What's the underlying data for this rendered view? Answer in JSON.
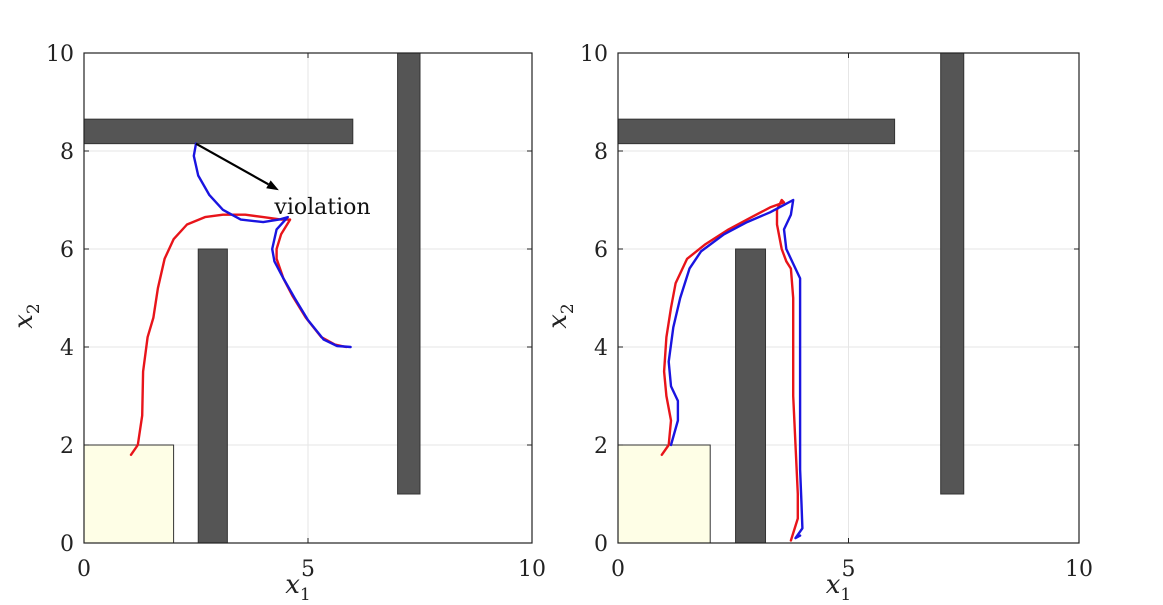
{
  "figure": {
    "panels": 2,
    "colors": {
      "obstacle": "#555555",
      "obstacle_edge": "#333333",
      "start_region": "#fefee6",
      "grid": "#e6e6e6",
      "axis": "#222222",
      "red_series": "#e8141a",
      "blue_series": "#1a14e0"
    }
  },
  "chart_data": [
    {
      "type": "line",
      "title": "",
      "xlabel": "x",
      "xlabel_sub": "1",
      "ylabel": "x",
      "ylabel_sub": "2",
      "xlim": [
        0,
        10
      ],
      "ylim": [
        0,
        10
      ],
      "xticks": [
        "0",
        "5",
        "10"
      ],
      "yticks": [
        "0",
        "2",
        "4",
        "6",
        "8",
        "10"
      ],
      "grid": true,
      "obstacles": [
        {
          "name": "horizontal-wall",
          "x0": 0,
          "x1": 6,
          "y0": 8.15,
          "y1": 8.65
        },
        {
          "name": "middle-pillar",
          "x0": 2.55,
          "x1": 3.2,
          "y0": 0,
          "y1": 6
        },
        {
          "name": "right-pillar",
          "x0": 7.0,
          "x1": 7.5,
          "y0": 1,
          "y1": 10
        }
      ],
      "start_region": {
        "x0": 0,
        "x1": 2,
        "y0": 0,
        "y1": 2
      },
      "annotation": {
        "text": "violation",
        "arrow_from": [
          2.5,
          8.15
        ],
        "arrow_to": [
          4.35,
          7.2
        ],
        "text_at": [
          4.25,
          6.65
        ]
      },
      "series": [
        {
          "name": "red",
          "color": "#e8141a",
          "points": [
            [
              1.05,
              1.8
            ],
            [
              1.2,
              2.0
            ],
            [
              1.3,
              2.6
            ],
            [
              1.32,
              3.5
            ],
            [
              1.42,
              4.2
            ],
            [
              1.55,
              4.6
            ],
            [
              1.65,
              5.2
            ],
            [
              1.8,
              5.8
            ],
            [
              2.0,
              6.2
            ],
            [
              2.3,
              6.5
            ],
            [
              2.7,
              6.65
            ],
            [
              3.1,
              6.7
            ],
            [
              3.6,
              6.7
            ],
            [
              4.0,
              6.65
            ],
            [
              4.4,
              6.6
            ],
            [
              4.6,
              6.6
            ],
            [
              4.4,
              6.3
            ],
            [
              4.3,
              6.0
            ],
            [
              4.3,
              5.8
            ],
            [
              4.45,
              5.4
            ],
            [
              4.65,
              5.05
            ],
            [
              4.95,
              4.6
            ],
            [
              5.3,
              4.2
            ],
            [
              5.6,
              4.05
            ],
            [
              5.85,
              4.0
            ]
          ]
        },
        {
          "name": "blue",
          "color": "#1a14e0",
          "points": [
            [
              2.5,
              8.15
            ],
            [
              2.45,
              7.9
            ],
            [
              2.55,
              7.5
            ],
            [
              2.8,
              7.1
            ],
            [
              3.1,
              6.8
            ],
            [
              3.5,
              6.6
            ],
            [
              4.0,
              6.55
            ],
            [
              4.35,
              6.6
            ],
            [
              4.55,
              6.65
            ],
            [
              4.3,
              6.4
            ],
            [
              4.2,
              6.0
            ],
            [
              4.25,
              5.75
            ],
            [
              4.45,
              5.4
            ],
            [
              4.7,
              5.0
            ],
            [
              5.0,
              4.55
            ],
            [
              5.35,
              4.15
            ],
            [
              5.65,
              4.02
            ],
            [
              5.95,
              4.0
            ]
          ]
        }
      ]
    },
    {
      "type": "line",
      "title": "",
      "xlabel": "x",
      "xlabel_sub": "1",
      "ylabel": "x",
      "ylabel_sub": "2",
      "xlim": [
        0,
        10
      ],
      "ylim": [
        0,
        10
      ],
      "xticks": [
        "0",
        "5",
        "10"
      ],
      "yticks": [
        "0",
        "2",
        "4",
        "6",
        "8",
        "10"
      ],
      "grid": true,
      "obstacles": [
        {
          "name": "horizontal-wall",
          "x0": 0,
          "x1": 6,
          "y0": 8.15,
          "y1": 8.65
        },
        {
          "name": "middle-pillar",
          "x0": 2.55,
          "x1": 3.2,
          "y0": 0,
          "y1": 6
        },
        {
          "name": "right-pillar",
          "x0": 7.0,
          "x1": 7.5,
          "y0": 1,
          "y1": 10
        }
      ],
      "start_region": {
        "x0": 0,
        "x1": 2,
        "y0": 0,
        "y1": 2
      },
      "series": [
        {
          "name": "red",
          "color": "#e8141a",
          "points": [
            [
              0.95,
              1.8
            ],
            [
              1.1,
              2.0
            ],
            [
              1.15,
              2.5
            ],
            [
              1.05,
              3.0
            ],
            [
              1.0,
              3.5
            ],
            [
              1.05,
              4.2
            ],
            [
              1.15,
              4.8
            ],
            [
              1.25,
              5.3
            ],
            [
              1.5,
              5.8
            ],
            [
              1.9,
              6.1
            ],
            [
              2.4,
              6.4
            ],
            [
              2.9,
              6.65
            ],
            [
              3.3,
              6.85
            ],
            [
              3.6,
              6.95
            ],
            [
              3.55,
              7.0
            ],
            [
              3.45,
              6.8
            ],
            [
              3.45,
              6.5
            ],
            [
              3.55,
              6.0
            ],
            [
              3.65,
              5.75
            ],
            [
              3.75,
              5.6
            ],
            [
              3.8,
              5.0
            ],
            [
              3.8,
              4.0
            ],
            [
              3.8,
              3.0
            ],
            [
              3.85,
              2.0
            ],
            [
              3.9,
              1.0
            ],
            [
              3.9,
              0.5
            ],
            [
              3.75,
              0.05
            ]
          ]
        },
        {
          "name": "blue",
          "color": "#1a14e0",
          "points": [
            [
              1.15,
              2.0
            ],
            [
              1.3,
              2.5
            ],
            [
              1.3,
              2.9
            ],
            [
              1.15,
              3.2
            ],
            [
              1.1,
              3.7
            ],
            [
              1.2,
              4.4
            ],
            [
              1.35,
              5.0
            ],
            [
              1.55,
              5.6
            ],
            [
              1.8,
              5.95
            ],
            [
              2.3,
              6.3
            ],
            [
              2.8,
              6.55
            ],
            [
              3.3,
              6.75
            ],
            [
              3.6,
              6.9
            ],
            [
              3.8,
              7.0
            ],
            [
              3.75,
              6.7
            ],
            [
              3.6,
              6.4
            ],
            [
              3.65,
              6.0
            ],
            [
              3.8,
              5.7
            ],
            [
              3.95,
              5.4
            ],
            [
              3.95,
              4.5
            ],
            [
              3.95,
              3.5
            ],
            [
              3.95,
              2.5
            ],
            [
              3.95,
              1.5
            ],
            [
              3.98,
              0.8
            ],
            [
              4.0,
              0.3
            ],
            [
              3.85,
              0.1
            ],
            [
              3.95,
              0.15
            ]
          ]
        }
      ]
    }
  ]
}
